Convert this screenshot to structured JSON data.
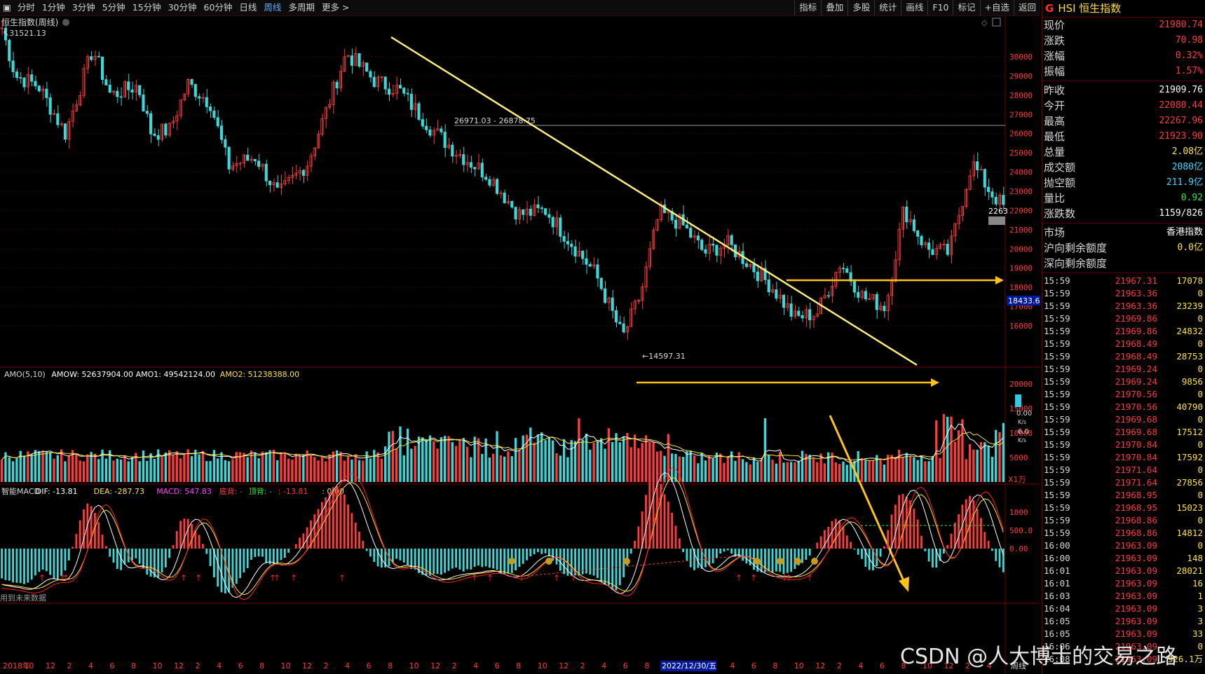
{
  "toolbar": {
    "periods": [
      "分时",
      "1分钟",
      "3分钟",
      "5分钟",
      "15分钟",
      "30分钟",
      "60分钟",
      "日线",
      "周线",
      "多周期",
      "更多 >"
    ],
    "active": "周线",
    "right": [
      "指标",
      "叠加",
      "多股",
      "统计",
      "画线",
      "F10",
      "标记",
      "+自选",
      "返回"
    ]
  },
  "main": {
    "title": "恒生指数(周线)",
    "hi_label": "31521.13",
    "lo_label": "←14597.31",
    "hline_label": "26971.03 - 26878.75",
    "price_tag": "18433.6",
    "last_tag": "2263",
    "y_ticks": [
      "30000",
      "29000",
      "28000",
      "27000",
      "26000",
      "25000",
      "24000",
      "23000",
      "22000",
      "21000",
      "20000",
      "19000",
      "18000",
      "17000",
      "16000"
    ]
  },
  "amo": {
    "header": [
      {
        "text": "AMO(5,10)",
        "color": "#d8d8d8"
      },
      {
        "text": "AMOW: 52637904.00",
        "color": "#ffffff"
      },
      {
        "text": "AMO1: 49542124.00",
        "color": "#ffffff"
      },
      {
        "text": "AMO2: 51238388.00",
        "color": "#ffe23c"
      }
    ],
    "y_ticks": [
      "20000",
      "15000",
      "10000",
      "5000"
    ],
    "unit": "X1万"
  },
  "macd": {
    "header": [
      {
        "text": "智能MACD",
        "color": "#d8d8d8"
      },
      {
        "text": "DIF: -13.81",
        "color": "#ffffff"
      },
      {
        "text": "DEA: -287.73",
        "color": "#ffe23c"
      },
      {
        "text": "MACD: 547.83",
        "color": "#ff40ff"
      },
      {
        "text": "底背: -",
        "color": "#ff3b3b"
      },
      {
        "text": "顶背: -",
        "color": "#31e836"
      },
      {
        "text": ": -13.81",
        "color": "#ff3b3b"
      },
      {
        "text": ": 0.00",
        "color": "#ffe23c"
      }
    ],
    "y_ticks": [
      "1000",
      "500.0",
      "0.00"
    ],
    "future_note": "用到未来数据"
  },
  "xaxis": {
    "labels": [
      "2018年",
      "10",
      "12",
      "2",
      "4",
      "6",
      "8",
      "10",
      "12",
      "2",
      "4",
      "6",
      "8",
      "10",
      "12",
      "2",
      "4",
      "6",
      "8",
      "10",
      "12",
      "2",
      "4",
      "6",
      "8",
      "10",
      "12",
      "2",
      "4",
      "6",
      "8",
      "10",
      "12",
      "2",
      "4",
      "6",
      "8",
      "10",
      "12",
      "2",
      "4",
      "6",
      "8",
      "10",
      "12",
      "2",
      "4"
    ],
    "cursor_date": "2022/12/30/五",
    "period": "周线"
  },
  "quote": {
    "code": "G",
    "name": "HSI 恒生指数",
    "rows1": [
      {
        "k": "现价",
        "v": "21980.74",
        "c": "red"
      },
      {
        "k": "涨跌",
        "v": "70.98",
        "c": "red"
      },
      {
        "k": "涨幅",
        "v": "0.32%",
        "c": "red"
      },
      {
        "k": "振幅",
        "v": "1.57%",
        "c": "red"
      }
    ],
    "rows2": [
      {
        "k": "昨收",
        "v": "21909.76",
        "c": "wht"
      },
      {
        "k": "今开",
        "v": "22080.44",
        "c": "red"
      },
      {
        "k": "最高",
        "v": "22267.96",
        "c": "red"
      },
      {
        "k": "最低",
        "v": "21923.90",
        "c": "red"
      },
      {
        "k": "总量",
        "v": "2.08亿",
        "c": "yel"
      },
      {
        "k": "成交额",
        "v": "2080亿",
        "c": "cyn"
      },
      {
        "k": "抛空额",
        "v": "211.9亿",
        "c": "cyn"
      },
      {
        "k": "量比",
        "v": "0.92",
        "c": "grn"
      },
      {
        "k": "涨跌数",
        "v": "1159/826",
        "c": "wht"
      }
    ],
    "rows3": [
      {
        "k": "市场",
        "v": "香港指数",
        "c": "wht"
      },
      {
        "k": "沪向剩余额度",
        "v": "0.0亿",
        "c": "yel"
      },
      {
        "k": "深向剩余额度",
        "v": "",
        "c": "wht"
      }
    ]
  },
  "ticks": [
    {
      "t": "15:59",
      "p": "21967.31",
      "v": "17078",
      "c": "yel"
    },
    {
      "t": "15:59",
      "p": "21963.36",
      "v": "0",
      "c": "yel"
    },
    {
      "t": "15:59",
      "p": "21963.36",
      "v": "23239",
      "c": "yel"
    },
    {
      "t": "15:59",
      "p": "21969.86",
      "v": "0",
      "c": "yel"
    },
    {
      "t": "15:59",
      "p": "21969.86",
      "v": "24832",
      "c": "yel"
    },
    {
      "t": "15:59",
      "p": "21968.49",
      "v": "0",
      "c": "yel"
    },
    {
      "t": "15:59",
      "p": "21968.49",
      "v": "28753",
      "c": "yel"
    },
    {
      "t": "15:59",
      "p": "21969.24",
      "v": "0",
      "c": "yel"
    },
    {
      "t": "15:59",
      "p": "21969.24",
      "v": "9856",
      "c": "yel"
    },
    {
      "t": "15:59",
      "p": "21970.56",
      "v": "0",
      "c": "yel"
    },
    {
      "t": "15:59",
      "p": "21970.56",
      "v": "40790",
      "c": "yel"
    },
    {
      "t": "15:59",
      "p": "21969.68",
      "v": "0",
      "c": "yel"
    },
    {
      "t": "15:59",
      "p": "21969.68",
      "v": "17512",
      "c": "yel"
    },
    {
      "t": "15:59",
      "p": "21970.84",
      "v": "0",
      "c": "yel"
    },
    {
      "t": "15:59",
      "p": "21970.84",
      "v": "17592",
      "c": "yel"
    },
    {
      "t": "15:59",
      "p": "21971.64",
      "v": "0",
      "c": "yel"
    },
    {
      "t": "15:59",
      "p": "21971.64",
      "v": "27856",
      "c": "yel"
    },
    {
      "t": "15:59",
      "p": "21968.95",
      "v": "0",
      "c": "yel"
    },
    {
      "t": "15:59",
      "p": "21968.95",
      "v": "15023",
      "c": "yel"
    },
    {
      "t": "15:59",
      "p": "21968.86",
      "v": "0",
      "c": "yel"
    },
    {
      "t": "15:59",
      "p": "21968.86",
      "v": "14812",
      "c": "yel"
    },
    {
      "t": "16:00",
      "p": "21963.09",
      "v": "0",
      "c": "yel"
    },
    {
      "t": "16:00",
      "p": "21963.09",
      "v": "148",
      "c": "yel"
    },
    {
      "t": "16:01",
      "p": "21963.09",
      "v": "28021",
      "c": "yel"
    },
    {
      "t": "16:01",
      "p": "21963.09",
      "v": "16",
      "c": "yel"
    },
    {
      "t": "16:03",
      "p": "21963.09",
      "v": "1",
      "c": "yel"
    },
    {
      "t": "16:04",
      "p": "21963.09",
      "v": "3",
      "c": "yel"
    },
    {
      "t": "16:05",
      "p": "21963.09",
      "v": "3",
      "c": "yel"
    },
    {
      "t": "16:05",
      "p": "21963.09",
      "v": "33",
      "c": "yel"
    },
    {
      "t": "16:06",
      "p": "21963.09",
      "v": "0",
      "c": "yel"
    },
    {
      "t": "16:08",
      "p": "21963.09",
      "v": "926.1万",
      "c": "yel"
    }
  ],
  "speed": {
    "a": "0.00",
    "a_unit": "K/s",
    "b": "6.0",
    "b_unit": "K/s"
  },
  "watermark": "CSDN @人大博士的交易之路"
}
